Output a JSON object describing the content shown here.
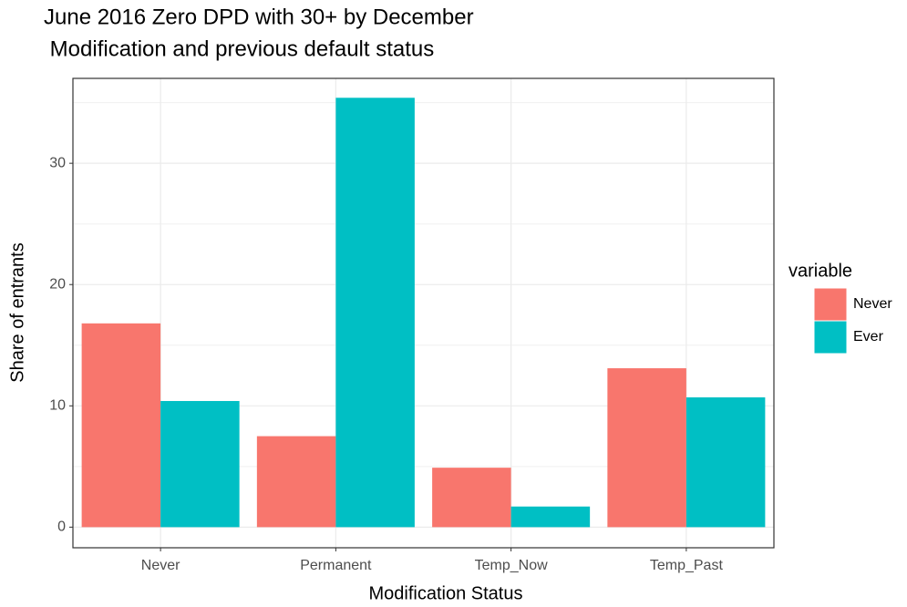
{
  "chart_data": {
    "type": "bar",
    "title": [
      "June 2016 Zero DPD with 30+  by December",
      " Modification and previous default status"
    ],
    "x_label": "Modification Status",
    "y_label": "Share of entrants",
    "legend_title": "variable",
    "categories": [
      "Never",
      "Permanent",
      "Temp_Now",
      "Temp_Past"
    ],
    "series": [
      {
        "name": "Never",
        "color": "#F8766D",
        "values": [
          16.8,
          7.5,
          4.9,
          13.1
        ]
      },
      {
        "name": "Ever",
        "color": "#00BFC4",
        "values": [
          10.4,
          35.4,
          1.7,
          10.7
        ]
      }
    ],
    "ylim": [
      -1.7,
      37.0
    ],
    "yticks": [
      0,
      10,
      20,
      30
    ],
    "grid": true,
    "legend": "right"
  }
}
